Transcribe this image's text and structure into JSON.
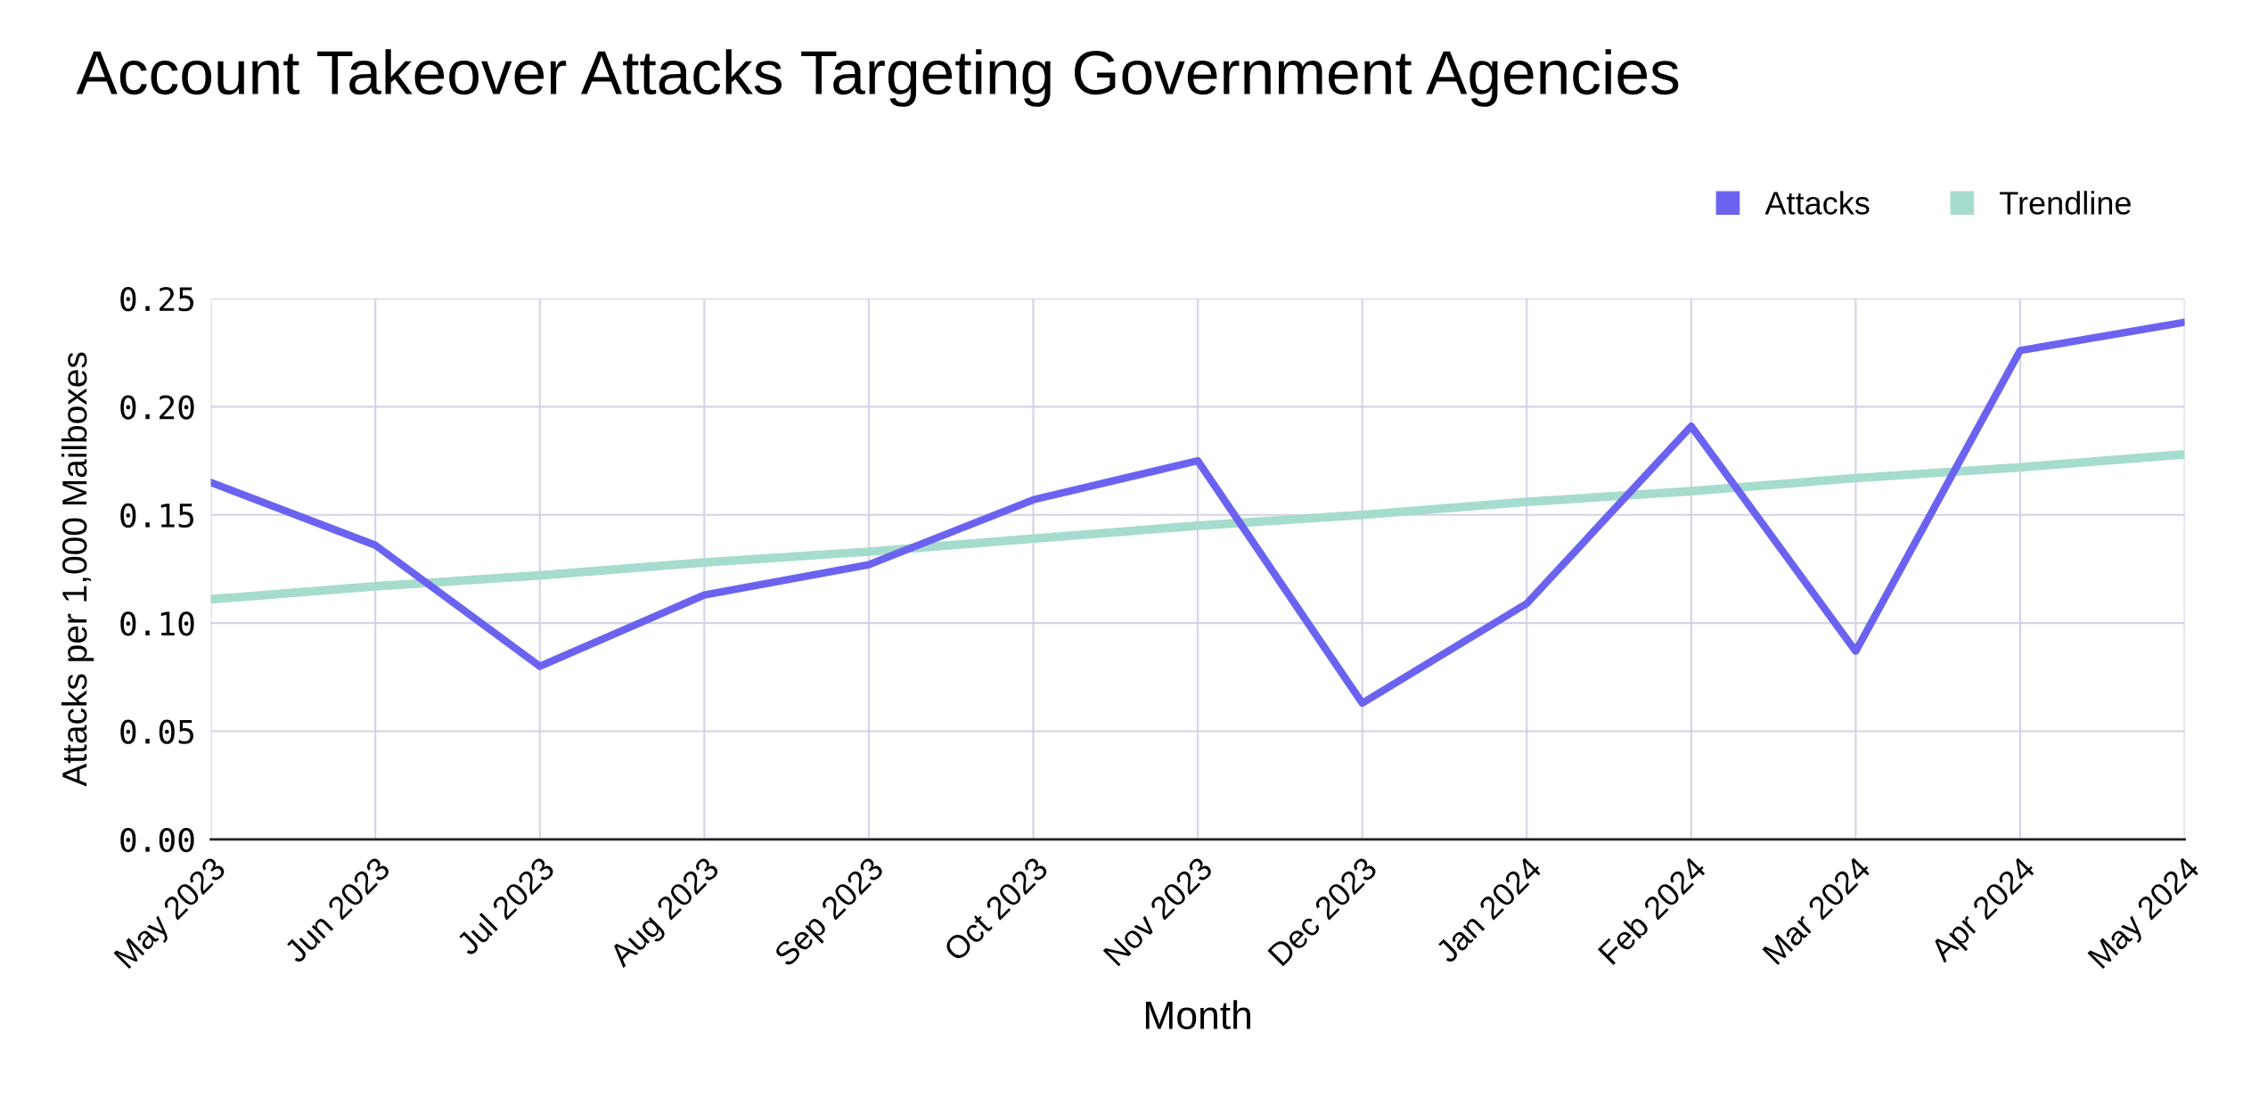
{
  "chart_data": {
    "type": "line",
    "title": "Account Takeover Attacks Targeting Government Agencies",
    "xlabel": "Month",
    "ylabel": "Attacks per 1,000 Mailboxes",
    "categories": [
      "May 2023",
      "Jun 2023",
      "Jul 2023",
      "Aug 2023",
      "Sep 2023",
      "Oct 2023",
      "Nov 2023",
      "Dec 2023",
      "Jan 2024",
      "Feb 2024",
      "Mar 2024",
      "Apr 2024",
      "May 2024"
    ],
    "series": [
      {
        "name": "Attacks",
        "color": "#6b63f0",
        "values": [
          0.165,
          0.136,
          0.08,
          0.113,
          0.127,
          0.157,
          0.175,
          0.063,
          0.109,
          0.191,
          0.087,
          0.226,
          0.239
        ]
      },
      {
        "name": "Trendline",
        "color": "#a6dccd",
        "values": [
          0.111,
          0.117,
          0.122,
          0.128,
          0.133,
          0.139,
          0.145,
          0.15,
          0.156,
          0.161,
          0.167,
          0.172,
          0.178
        ]
      }
    ],
    "ylim": [
      0,
      0.25
    ],
    "yticks": [
      {
        "value": 0,
        "label": "0.00"
      },
      {
        "value": 0.05,
        "label": "0.05"
      },
      {
        "value": 0.1,
        "label": "0.10"
      },
      {
        "value": 0.15,
        "label": "0.15"
      },
      {
        "value": 0.2,
        "label": "0.20"
      },
      {
        "value": 0.25,
        "label": "0.25"
      }
    ],
    "grid": true,
    "legend": "top right",
    "marker": "none",
    "line_style": "solid"
  }
}
